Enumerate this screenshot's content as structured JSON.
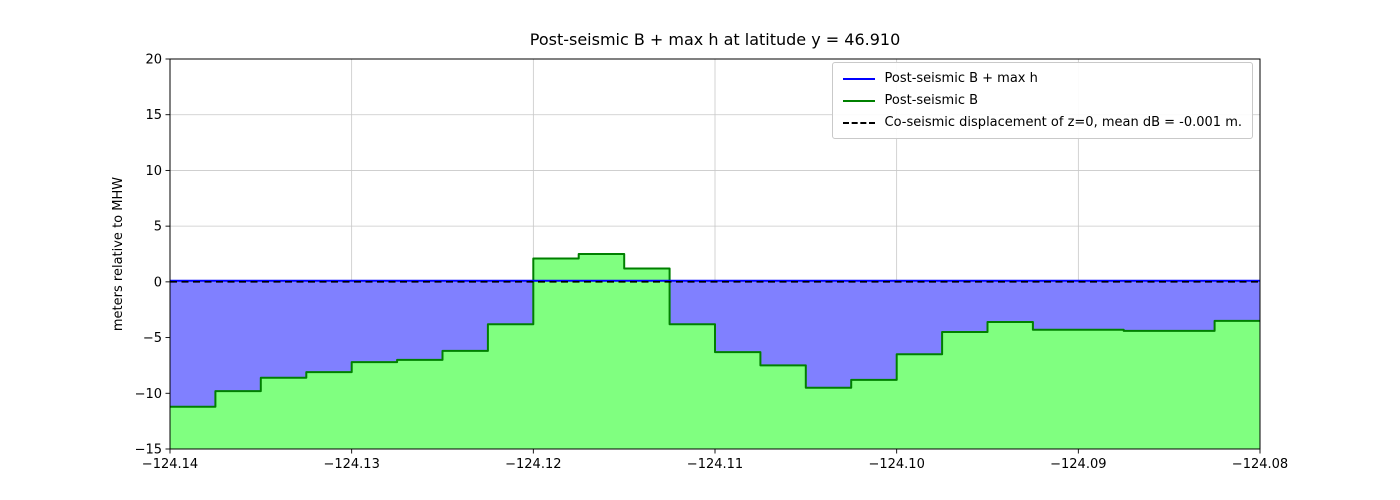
{
  "chart_data": {
    "type": "area",
    "title": "Post-seismic B + max h at latitude y = 46.910",
    "ylabel": "meters relative to MHW",
    "xlabel": "",
    "xlim": [
      -124.14,
      -124.08
    ],
    "ylim": [
      -15,
      20
    ],
    "grid": true,
    "grid_color": "#c8c8c8",
    "frame_color": "#000000",
    "xticks": [
      {
        "value": -124.14,
        "label": "−124.14"
      },
      {
        "value": -124.13,
        "label": "−124.13"
      },
      {
        "value": -124.12,
        "label": "−124.12"
      },
      {
        "value": -124.11,
        "label": "−124.11"
      },
      {
        "value": -124.1,
        "label": "−124.10"
      },
      {
        "value": -124.09,
        "label": "−124.09"
      },
      {
        "value": -124.08,
        "label": "−124.08"
      }
    ],
    "yticks": [
      {
        "value": 20,
        "label": "20"
      },
      {
        "value": 15,
        "label": "15"
      },
      {
        "value": 10,
        "label": "10"
      },
      {
        "value": 5,
        "label": "5"
      },
      {
        "value": 0,
        "label": "0"
      },
      {
        "value": -5,
        "label": "−5"
      },
      {
        "value": -10,
        "label": "−10"
      },
      {
        "value": -15,
        "label": "−15"
      }
    ],
    "legend": {
      "position": "upper right",
      "entries": [
        {
          "label": "Post-seismic B + max h",
          "color": "#0000ff",
          "style": "solid"
        },
        {
          "label": "Post-seismic B",
          "color": "#008000",
          "style": "solid"
        },
        {
          "label": "Co-seismic displacement of z=0, mean dB = -0.001 m.",
          "color": "#000000",
          "style": "dashed"
        }
      ]
    },
    "series": [
      {
        "name": "Post-seismic B + max h",
        "type": "hline",
        "dashed": false,
        "value": 0.1,
        "color": "#0000ff",
        "line_width": 2,
        "fill_color": "#8080ff"
      },
      {
        "name": "Post-seismic B",
        "type": "step",
        "color": "#008000",
        "line_width": 2,
        "fill_color": "#80ff80",
        "fill_to": -15,
        "edges": [
          -124.14,
          -124.1375,
          -124.135,
          -124.1325,
          -124.13,
          -124.1275,
          -124.125,
          -124.1225,
          -124.12,
          -124.1175,
          -124.115,
          -124.1125,
          -124.11,
          -124.1075,
          -124.105,
          -124.1025,
          -124.1,
          -124.0975,
          -124.095,
          -124.0925,
          -124.09,
          -124.0875,
          -124.085,
          -124.0825,
          -124.08
        ],
        "values": [
          -11.2,
          -9.8,
          -8.6,
          -8.1,
          -7.2,
          -7.0,
          -6.2,
          -3.8,
          2.1,
          2.5,
          1.2,
          -3.8,
          -6.3,
          -7.5,
          -9.5,
          -8.8,
          -6.5,
          -4.5,
          -3.6,
          -4.3,
          -4.3,
          -4.4,
          -4.4,
          -3.5
        ]
      },
      {
        "name": "Co-seismic displacement of z=0, mean dB = -0.001 m.",
        "type": "hline",
        "dashed": true,
        "value": 0.0,
        "color": "#000000",
        "line_width": 1.6
      }
    ]
  }
}
